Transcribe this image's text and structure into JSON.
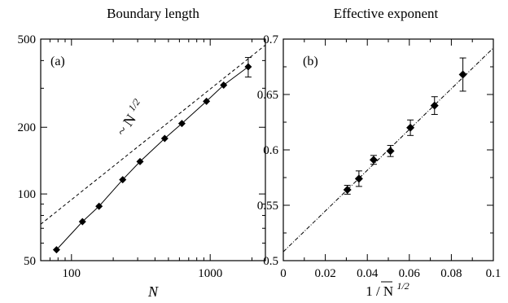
{
  "chart_data": [
    {
      "type": "line",
      "panel_label": "(a)",
      "title": "Boundary length",
      "xlabel": "N",
      "ylabel": "",
      "xscale": "log",
      "yscale": "log",
      "xlim": [
        60,
        2500
      ],
      "ylim": [
        50,
        500
      ],
      "xticks": [
        100,
        1000
      ],
      "xtick_labels": [
        "100",
        "1000"
      ],
      "yticks": [
        50,
        100,
        200,
        500
      ],
      "ytick_labels": [
        "50",
        "100",
        "200",
        "500"
      ],
      "series": [
        {
          "style": "solid line with diamond markers",
          "x": [
            78,
            120,
            158,
            234,
            312,
            470,
            625,
            940,
            1250,
            1880
          ],
          "y": [
            56,
            75,
            88,
            116,
            140,
            178,
            208,
            262,
            310,
            375
          ],
          "err": [
            0,
            0,
            0,
            0,
            0,
            0,
            0,
            0,
            0,
            38
          ]
        },
        {
          "style": "dashed reference line",
          "x": [
            60,
            2500
          ],
          "y": [
            73,
            470
          ]
        }
      ],
      "annotations": [
        {
          "text": "~ N",
          "sup": "1/2"
        }
      ]
    },
    {
      "type": "scatter",
      "panel_label": "(b)",
      "title": "Effective exponent",
      "xlabel": "1 / N",
      "xlabel_sup": "1/2",
      "ylabel": "",
      "xlim": [
        0,
        0.1
      ],
      "ylim": [
        0.5,
        0.7
      ],
      "xticks": [
        0,
        0.02,
        0.04,
        0.06,
        0.08,
        0.1
      ],
      "xtick_labels": [
        "0",
        "0.02",
        "0.04",
        "0.06",
        "0.08",
        "0.1"
      ],
      "yticks": [
        0.5,
        0.55,
        0.6,
        0.65,
        0.7
      ],
      "ytick_labels": [
        "0.5",
        "0.55",
        "0.6",
        "0.65",
        "0.7"
      ],
      "series": [
        {
          "style": "diamond markers with error bars",
          "x": [
            0.0305,
            0.036,
            0.043,
            0.051,
            0.0605,
            0.072,
            0.0855
          ],
          "y": [
            0.564,
            0.574,
            0.591,
            0.599,
            0.62,
            0.64,
            0.668
          ],
          "err": [
            0.004,
            0.007,
            0.004,
            0.005,
            0.007,
            0.008,
            0.015
          ]
        },
        {
          "style": "dash-dot fit line",
          "x": [
            0,
            0.1
          ],
          "y": [
            0.508,
            0.692
          ]
        }
      ]
    }
  ]
}
